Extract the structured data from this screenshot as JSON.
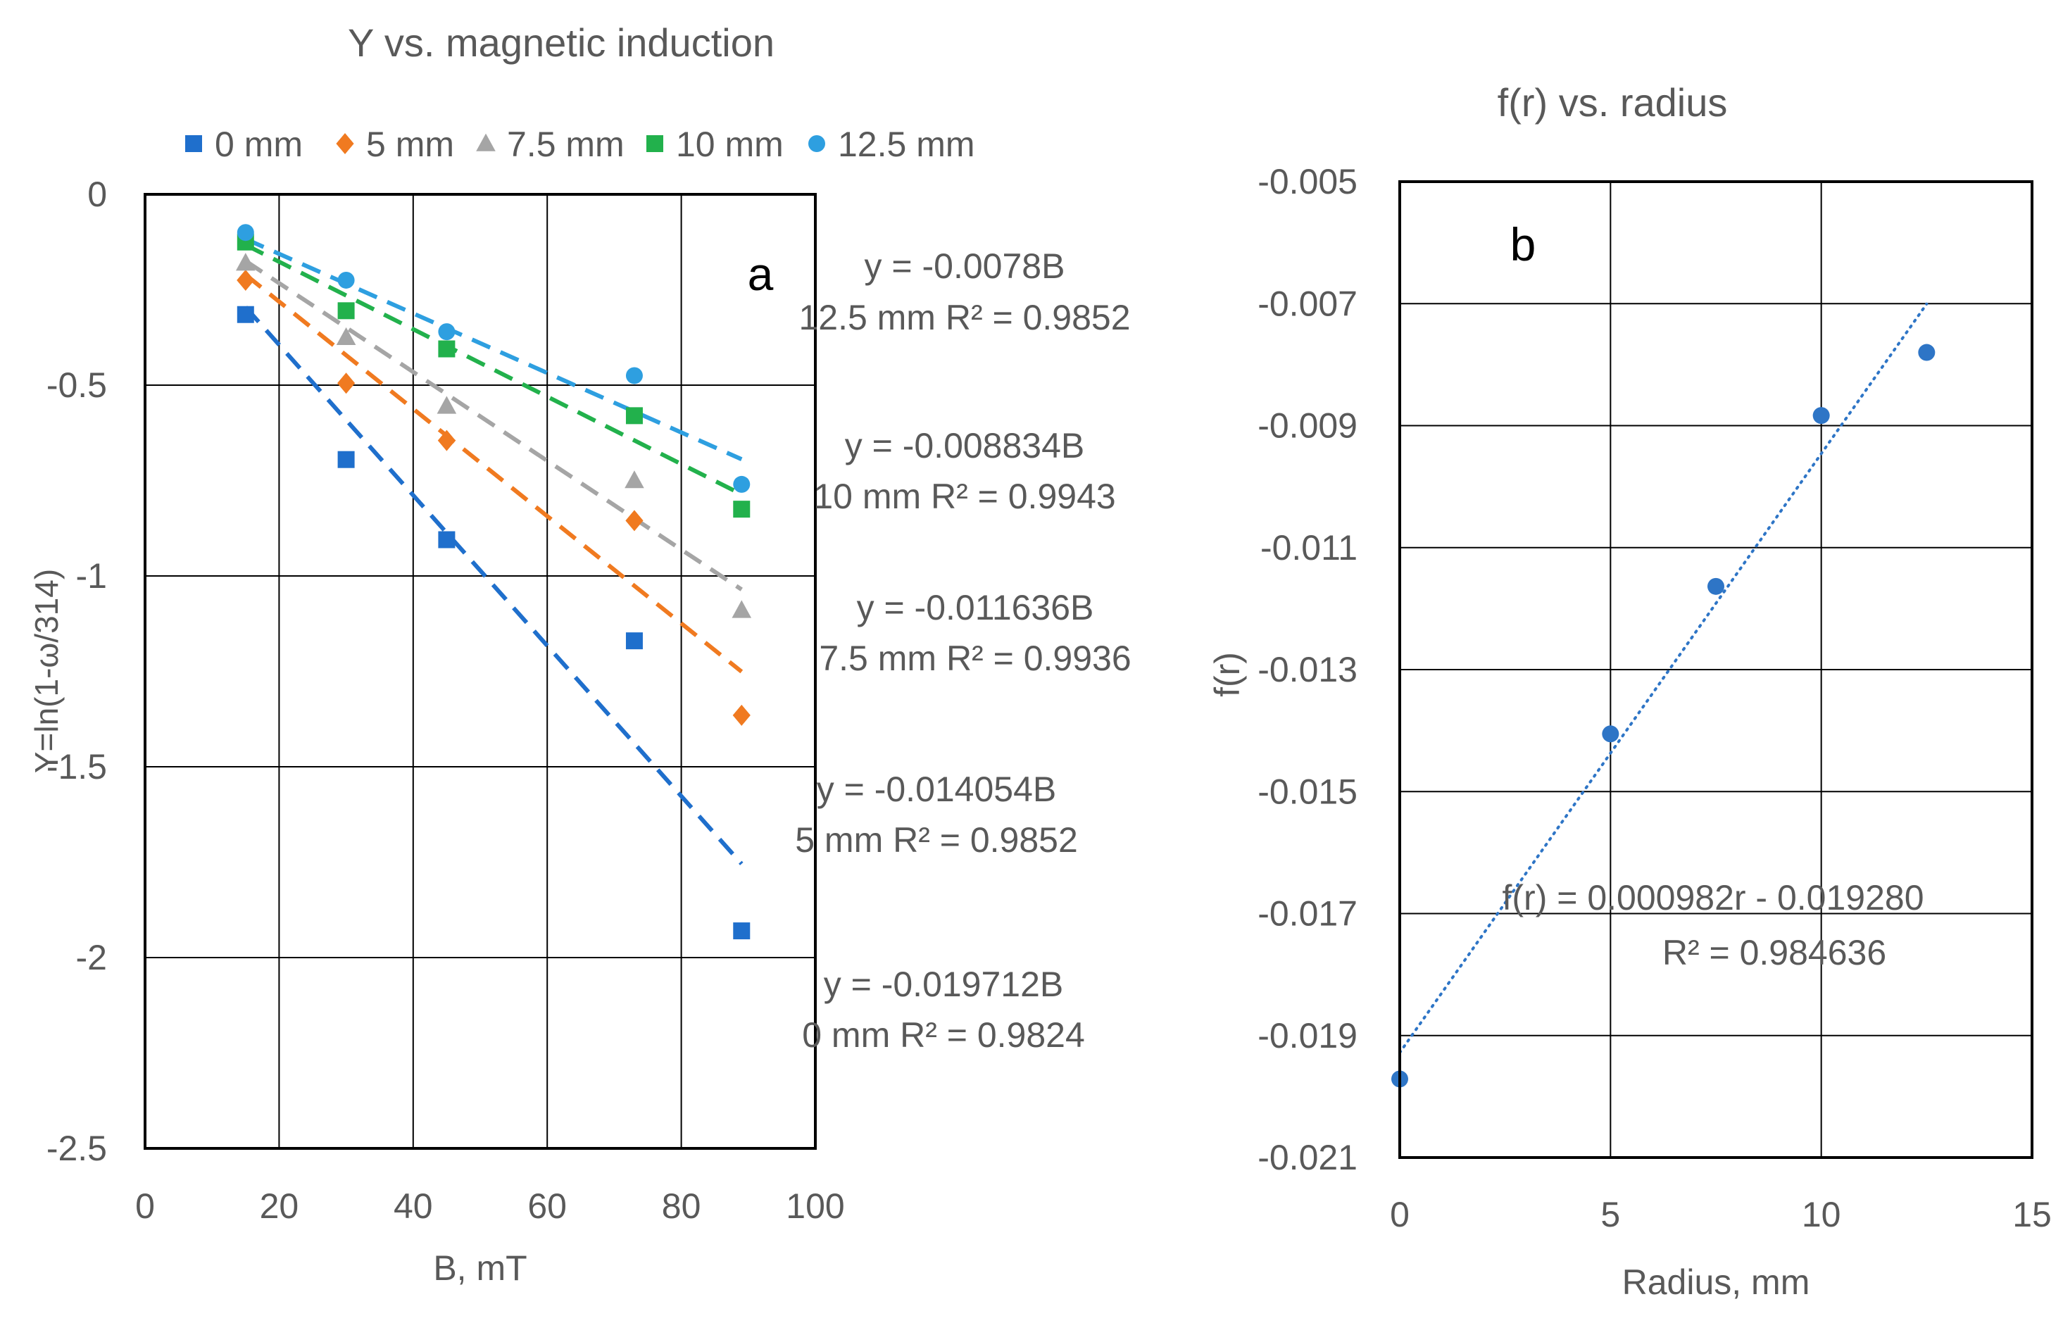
{
  "chart_data": [
    {
      "type": "scatter",
      "panel_label": "a",
      "title": "Y vs. magnetic induction",
      "xlabel": "B, mT",
      "ylabel": "Y=ln(1-ω/314)",
      "xlim": [
        0,
        100
      ],
      "ylim": [
        -2.5,
        0
      ],
      "xticks": [
        0,
        20,
        40,
        60,
        80,
        100
      ],
      "yticks": [
        0,
        -0.5,
        -1,
        -1.5,
        -2,
        -2.5
      ],
      "ytick_labels": [
        "0",
        "-0.5",
        "-1",
        "-1.5",
        "-2",
        "-2.5"
      ],
      "grid": true,
      "legend_position": "top",
      "series": [
        {
          "name": "0 mm",
          "color": "#1f6fcc",
          "marker": "square",
          "x": [
            15,
            30,
            45,
            73,
            89
          ],
          "y": [
            -0.315,
            -0.695,
            -0.905,
            -1.17,
            -1.93
          ],
          "fit": {
            "slope": -0.019712,
            "intercept": 0,
            "x_range": [
              15,
              89
            ]
          },
          "equation": "y = -0.019712B",
          "r2_label": "0 mm R² = 0.9824"
        },
        {
          "name": "5 mm",
          "color": "#f07a20",
          "marker": "diamond",
          "x": [
            15,
            30,
            45,
            73,
            89
          ],
          "y": [
            -0.225,
            -0.495,
            -0.645,
            -0.855,
            -1.365
          ],
          "fit": {
            "slope": -0.014054,
            "intercept": 0,
            "x_range": [
              15,
              89
            ]
          },
          "equation": "y = -0.014054B",
          "r2_label": "5 mm R² = 0.9852"
        },
        {
          "name": "7.5 mm",
          "color": "#a5a5a5",
          "marker": "triangle",
          "x": [
            15,
            30,
            45,
            73,
            89
          ],
          "y": [
            -0.18,
            -0.375,
            -0.555,
            -0.75,
            -1.09
          ],
          "fit": {
            "slope": -0.011636,
            "intercept": 0,
            "x_range": [
              15,
              89
            ]
          },
          "equation": "y = -0.011636B",
          "r2_label": "7.5 mm R² = 0.9936"
        },
        {
          "name": "10 mm",
          "color": "#22b14c",
          "marker": "square",
          "x": [
            15,
            30,
            45,
            73,
            89
          ],
          "y": [
            -0.125,
            -0.305,
            -0.405,
            -0.58,
            -0.825
          ],
          "fit": {
            "slope": -0.008834,
            "intercept": 0,
            "x_range": [
              15,
              89
            ]
          },
          "equation": "y = -0.008834B",
          "r2_label": "10 mm R² = 0.9943"
        },
        {
          "name": "12.5 mm",
          "color": "#2e9fe0",
          "marker": "circle",
          "x": [
            15,
            30,
            45,
            73,
            89
          ],
          "y": [
            -0.1,
            -0.225,
            -0.36,
            -0.475,
            -0.76
          ],
          "fit": {
            "slope": -0.0078,
            "intercept": 0,
            "x_range": [
              15,
              89
            ]
          },
          "equation": "y = -0.0078B",
          "r2_label": "12.5 mm R² = 0.9852"
        }
      ]
    },
    {
      "type": "scatter",
      "panel_label": "b",
      "title": "f(r) vs. radius",
      "xlabel": "Radius, mm",
      "ylabel": "f(r)",
      "xlim": [
        0,
        15
      ],
      "ylim": [
        -0.021,
        -0.005
      ],
      "xticks": [
        0,
        5,
        10,
        15
      ],
      "yticks": [
        -0.005,
        -0.007,
        -0.009,
        -0.011,
        -0.013,
        -0.015,
        -0.017,
        -0.019,
        -0.021
      ],
      "ytick_labels": [
        "-0.005",
        "-0.007",
        "-0.009",
        "-0.011",
        "-0.013",
        "-0.015",
        "-0.017",
        "-0.019",
        "-0.021"
      ],
      "grid": true,
      "series": [
        {
          "name": "f(r)",
          "color": "#2e75c6",
          "marker": "circle",
          "x": [
            0,
            5,
            7.5,
            10,
            12.5
          ],
          "y": [
            -0.019712,
            -0.014054,
            -0.011636,
            -0.008834,
            -0.0078
          ]
        }
      ],
      "trendline": {
        "slope": 0.000982,
        "intercept": -0.01928,
        "x_range": [
          0,
          12.5
        ]
      },
      "equation": "f(r) = 0.000982r - 0.019280",
      "r2_label": "R² = 0.984636"
    }
  ]
}
